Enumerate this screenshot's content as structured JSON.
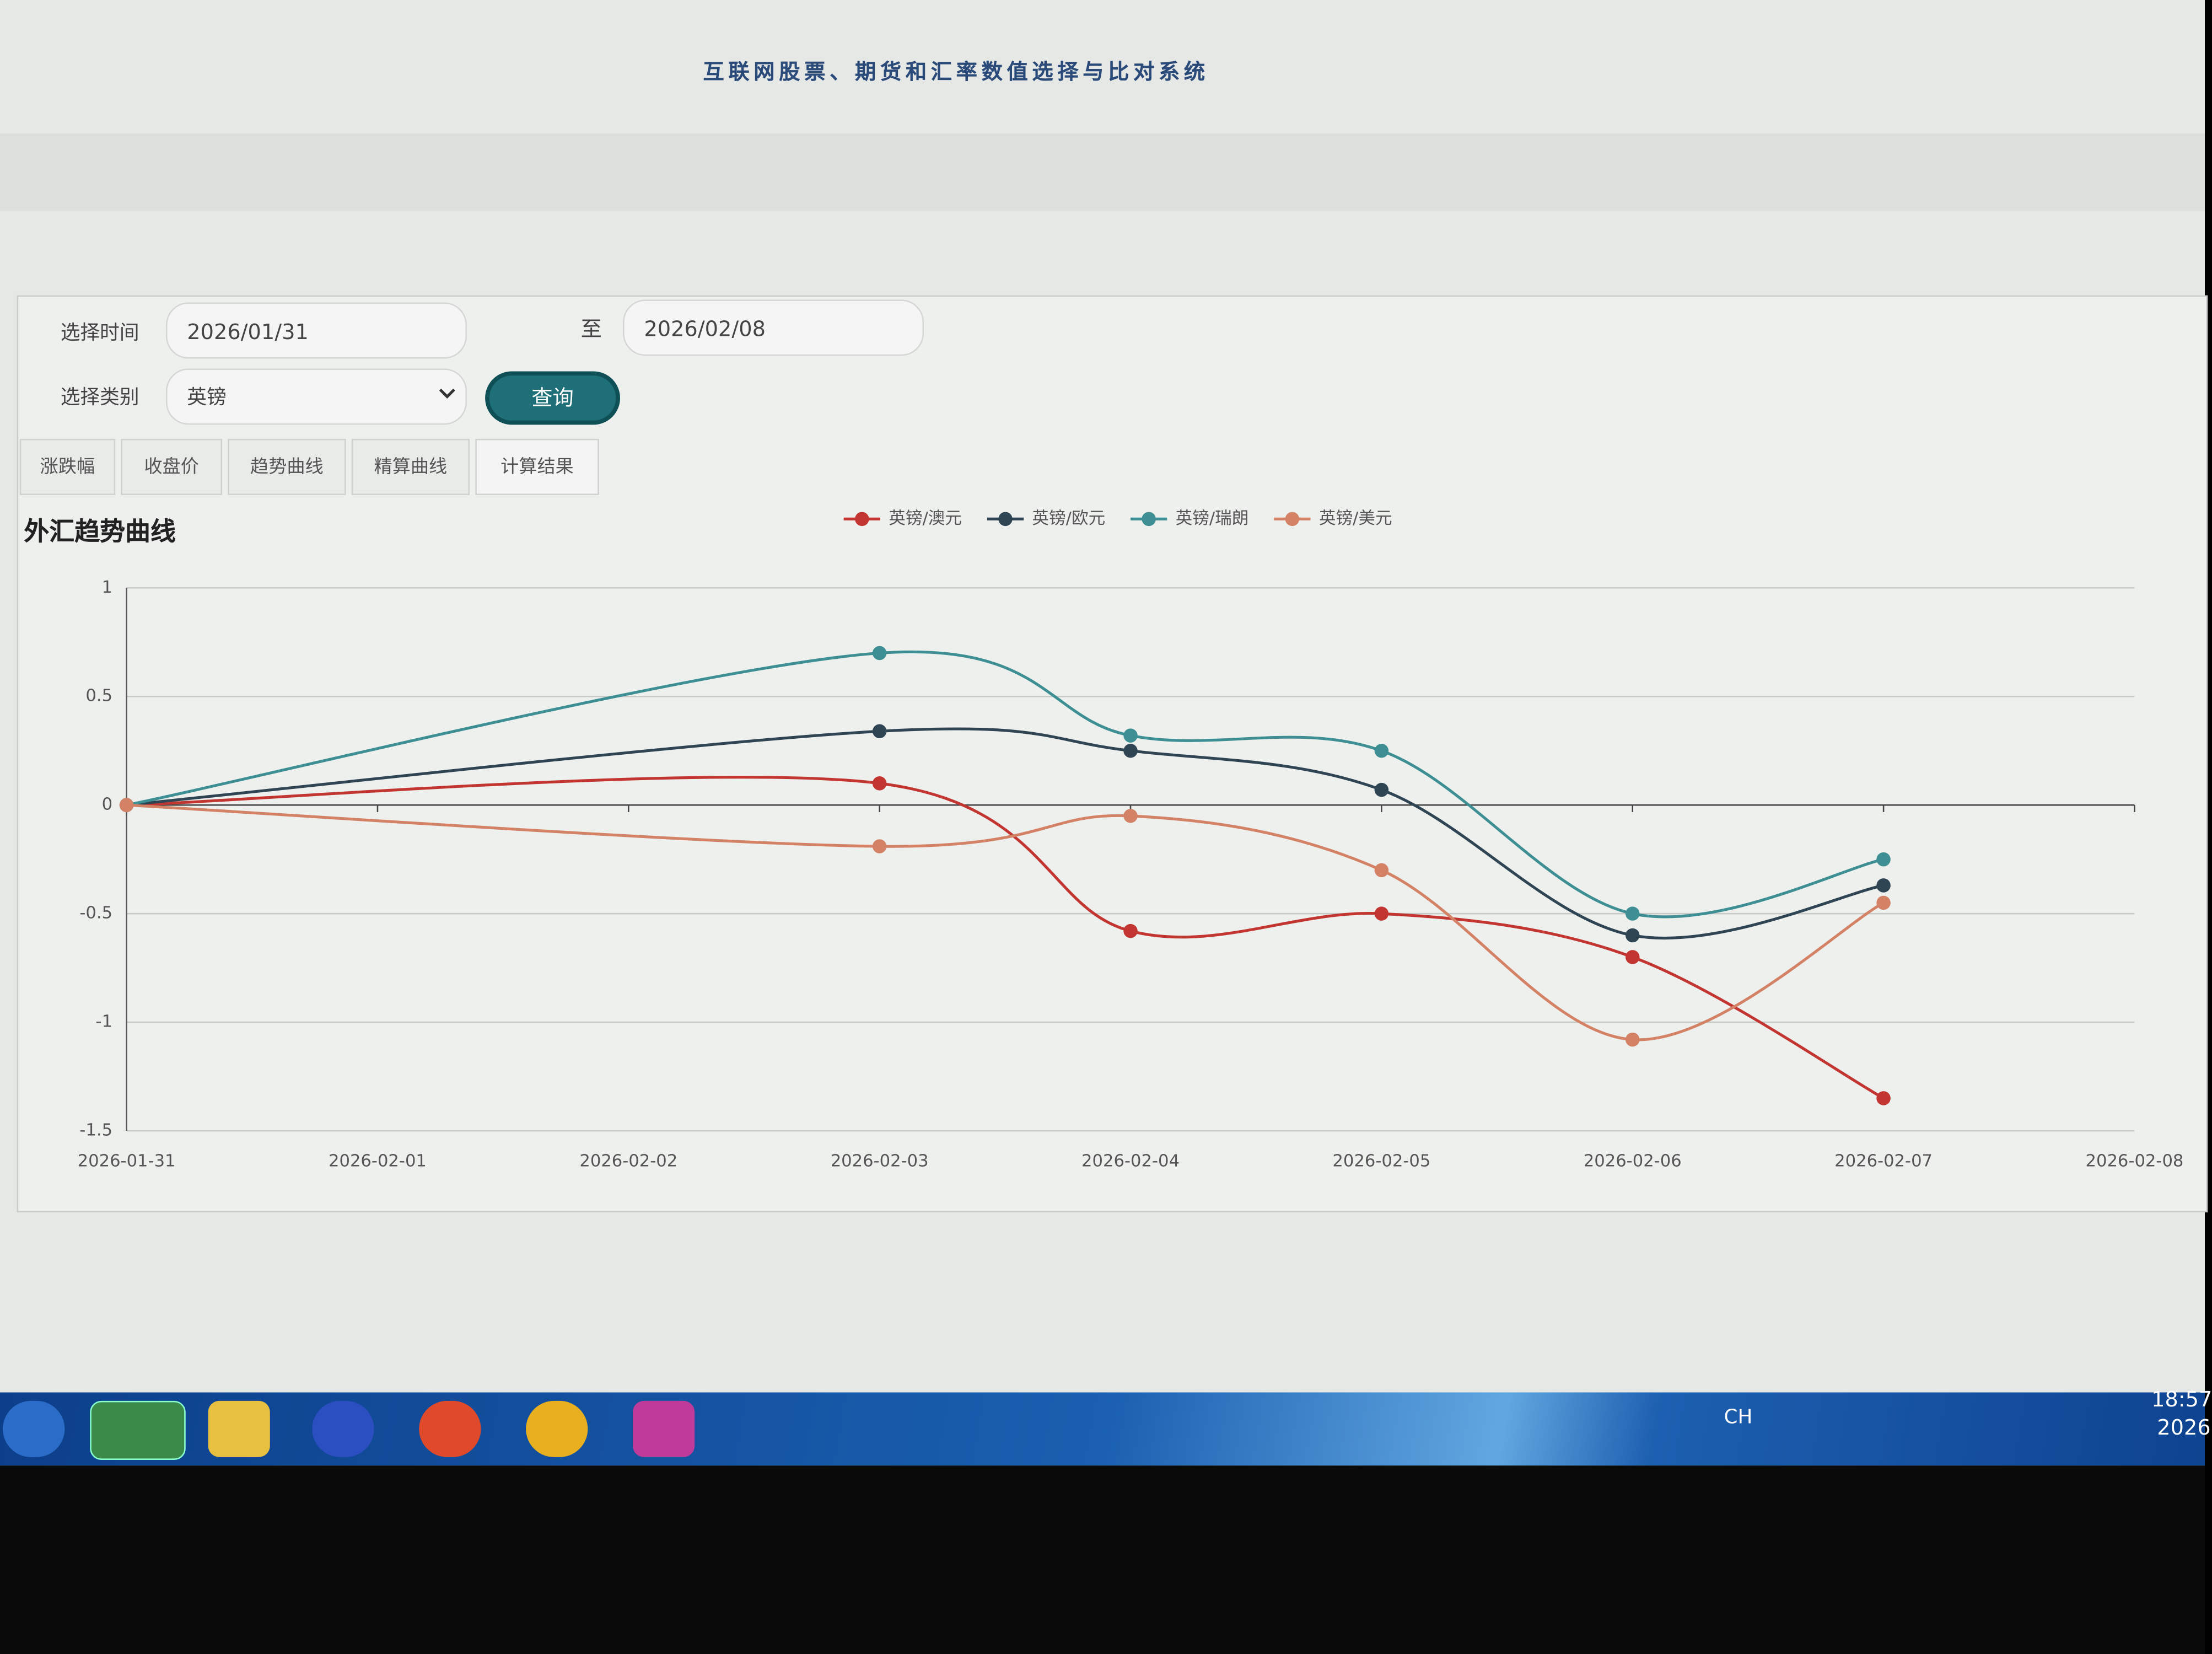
{
  "header": {
    "title": "互联网股票、期货和汇率数值选择与比对系统"
  },
  "form": {
    "time_label": "选择时间",
    "start_date": "2026/01/31",
    "to": "至",
    "end_date": "2026/02/08",
    "category_label": "选择类别",
    "category": "英镑",
    "query_button": "查询"
  },
  "tabs": [
    "涨跌幅",
    "收盘价",
    "趋势曲线",
    "精算曲线",
    "计算结果"
  ],
  "chart_data": {
    "type": "line",
    "title": "外汇趋势曲线",
    "categories": [
      "2026-01-31",
      "2026-02-01",
      "2026-02-02",
      "2026-02-03",
      "2026-02-04",
      "2026-02-05",
      "2026-02-06",
      "2026-02-07",
      "2026-02-08"
    ],
    "series": [
      {
        "name": "英镑/澳元",
        "color": "#c23531",
        "values": [
          0,
          null,
          null,
          0.1,
          -0.58,
          -0.5,
          -0.7,
          -1.35,
          null
        ]
      },
      {
        "name": "英镑/欧元",
        "color": "#2f4554",
        "values": [
          0,
          null,
          null,
          0.34,
          0.25,
          0.07,
          -0.6,
          -0.37,
          null
        ]
      },
      {
        "name": "英镑/瑞朗",
        "color": "#3d8f93",
        "values": [
          0,
          null,
          null,
          0.7,
          0.32,
          0.25,
          -0.5,
          -0.25,
          null
        ]
      },
      {
        "name": "英镑/美元",
        "color": "#d48265",
        "values": [
          0,
          null,
          null,
          -0.19,
          -0.05,
          -0.3,
          -1.08,
          -0.45,
          null
        ]
      }
    ],
    "ylim": [
      -1.5,
      1
    ],
    "yticks": [
      1,
      0.5,
      0,
      -0.5,
      -1,
      -1.5
    ],
    "grid": true,
    "legend": "top"
  },
  "taskbar": {
    "language": "CH",
    "time": "18:57",
    "date": "2026"
  }
}
